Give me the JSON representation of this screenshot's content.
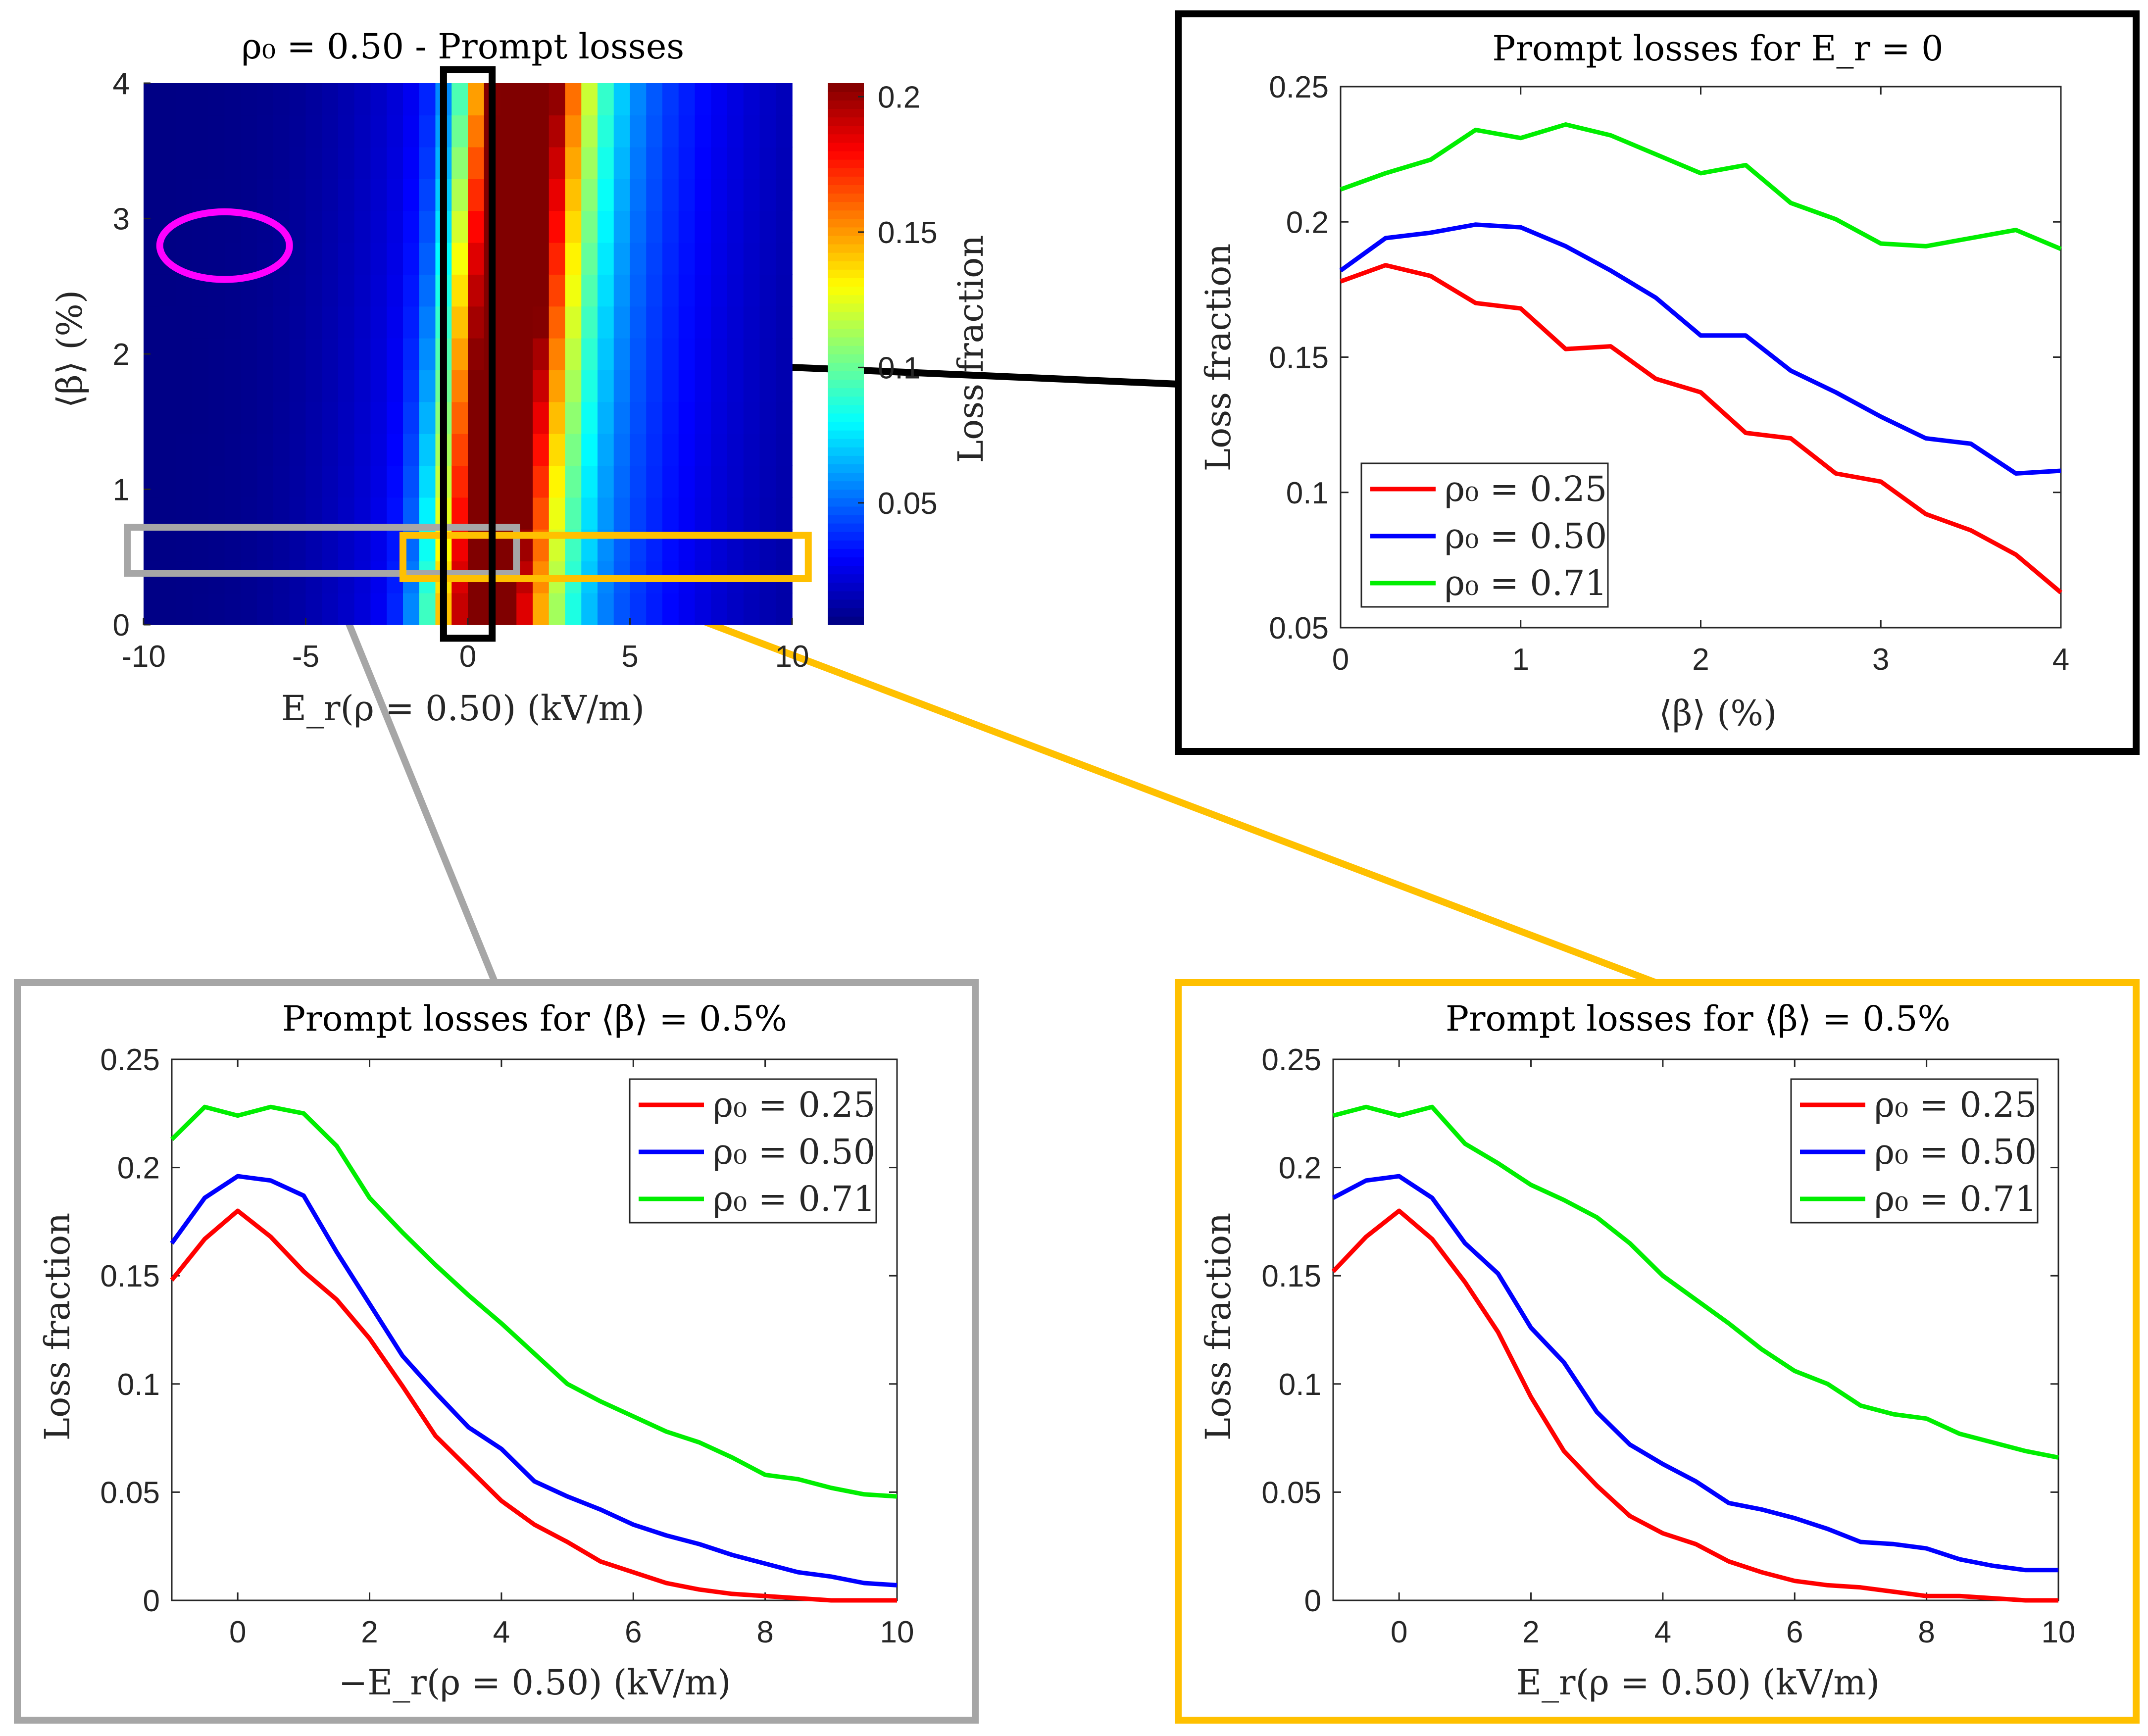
{
  "colors": {
    "rho025": "#ff0000",
    "rho050": "#0000ff",
    "rho071": "#00ee00",
    "box_main": "#000000",
    "box_gray": "#a6a6a6",
    "box_orange": "#ffc000",
    "ellipse": "#ff00ff"
  },
  "chart_data": [
    {
      "id": "heatmap",
      "type": "heatmap",
      "title": "ρ₀ = 0.50 - Prompt losses",
      "xlabel": "E_r(ρ = 0.50) (kV/m)",
      "ylabel": "⟨β⟩ (%)",
      "xlim": [
        -10,
        10
      ],
      "ylim": [
        0,
        4
      ],
      "xticks": [
        -10,
        -5,
        0,
        5,
        10
      ],
      "yticks": [
        0,
        1,
        2,
        3,
        4
      ],
      "colorbar": {
        "label": "Loss fraction",
        "range": [
          0.005,
          0.205
        ],
        "ticks": [
          0.05,
          0.1,
          0.15,
          0.2
        ],
        "tick_labels": [
          "0.05",
          "0.1",
          "0.15",
          "0.2"
        ],
        "colormap": "jet"
      },
      "annotations": {
        "ellipse": {
          "center": [
            -7.5,
            2.8
          ],
          "semi_axes": [
            2.0,
            0.25
          ]
        },
        "black_box": {
          "x": [
            -0.75,
            0.75
          ],
          "y": [
            -0.1,
            4.1
          ]
        },
        "gray_box": {
          "x": [
            -10.5,
            1.5
          ],
          "y": [
            0.38,
            0.72
          ]
        },
        "orange_box": {
          "x": [
            -2.0,
            10.5
          ],
          "y": [
            0.34,
            0.66
          ]
        }
      }
    },
    {
      "id": "beta-profile",
      "type": "line",
      "title": "Prompt losses for E_r = 0",
      "xlabel": "⟨β⟩ (%)",
      "ylabel": "Loss fraction",
      "xlim": [
        0,
        4
      ],
      "ylim": [
        0.05,
        0.25
      ],
      "xticks": [
        0,
        1,
        2,
        3,
        4
      ],
      "yticks": [
        0.05,
        0.1,
        0.15,
        0.2,
        0.25
      ],
      "ytick_labels": [
        "0.05",
        "0.1",
        "0.15",
        "0.2",
        "0.25"
      ],
      "legend_position": "bottom-left",
      "x": [
        0,
        0.25,
        0.5,
        0.75,
        1.0,
        1.25,
        1.5,
        1.75,
        2.0,
        2.25,
        2.5,
        2.75,
        3.0,
        3.25,
        3.5,
        3.75,
        4.0
      ],
      "series": [
        {
          "name": "ρ₀ = 0.25",
          "color": "#ff0000",
          "values": [
            0.178,
            0.184,
            0.18,
            0.17,
            0.168,
            0.153,
            0.154,
            0.142,
            0.137,
            0.122,
            0.12,
            0.107,
            0.104,
            0.092,
            0.086,
            0.077,
            0.063
          ]
        },
        {
          "name": "ρ₀ = 0.50",
          "color": "#0000ff",
          "values": [
            0.182,
            0.194,
            0.196,
            0.199,
            0.198,
            0.191,
            0.182,
            0.172,
            0.158,
            0.158,
            0.145,
            0.137,
            0.128,
            0.12,
            0.118,
            0.107,
            0.108
          ]
        },
        {
          "name": "ρ₀ = 0.71",
          "color": "#00ee00",
          "values": [
            0.212,
            0.218,
            0.223,
            0.234,
            0.231,
            0.236,
            0.232,
            0.225,
            0.218,
            0.221,
            0.207,
            0.201,
            0.192,
            0.191,
            0.194,
            0.197,
            0.19
          ]
        }
      ]
    },
    {
      "id": "er-negative",
      "type": "line",
      "title": "Prompt losses for ⟨β⟩ = 0.5%",
      "xlabel": "−E_r(ρ = 0.50) (kV/m)",
      "ylabel": "Loss fraction",
      "xlim": [
        -1,
        10
      ],
      "ylim": [
        0,
        0.25
      ],
      "xticks": [
        0,
        2,
        4,
        6,
        8,
        10
      ],
      "yticks": [
        0,
        0.05,
        0.1,
        0.15,
        0.2,
        0.25
      ],
      "ytick_labels": [
        "0",
        "0.05",
        "0.1",
        "0.15",
        "0.2",
        "0.25"
      ],
      "legend_position": "top-right",
      "x": [
        -1,
        -0.5,
        0,
        0.5,
        1,
        1.5,
        2,
        2.5,
        3,
        3.5,
        4,
        4.5,
        5,
        5.5,
        6,
        6.5,
        7,
        7.5,
        8,
        8.5,
        9,
        9.5,
        10
      ],
      "series": [
        {
          "name": "ρ₀ = 0.25",
          "color": "#ff0000",
          "values": [
            0.148,
            0.167,
            0.18,
            0.168,
            0.152,
            0.139,
            0.121,
            0.099,
            0.076,
            0.061,
            0.046,
            0.035,
            0.027,
            0.018,
            0.013,
            0.008,
            0.005,
            0.003,
            0.002,
            0.001,
            0.0,
            0.0,
            0.0
          ]
        },
        {
          "name": "ρ₀ = 0.50",
          "color": "#0000ff",
          "values": [
            0.165,
            0.186,
            0.196,
            0.194,
            0.187,
            0.161,
            0.137,
            0.113,
            0.096,
            0.08,
            0.07,
            0.055,
            0.048,
            0.042,
            0.035,
            0.03,
            0.026,
            0.021,
            0.017,
            0.013,
            0.011,
            0.008,
            0.007
          ]
        },
        {
          "name": "ρ₀ = 0.71",
          "color": "#00ee00",
          "values": [
            0.213,
            0.228,
            0.224,
            0.228,
            0.225,
            0.21,
            0.186,
            0.17,
            0.155,
            0.141,
            0.128,
            0.114,
            0.1,
            0.092,
            0.085,
            0.078,
            0.073,
            0.066,
            0.058,
            0.056,
            0.052,
            0.049,
            0.048
          ]
        }
      ]
    },
    {
      "id": "er-positive",
      "type": "line",
      "title": "Prompt losses for ⟨β⟩ = 0.5%",
      "xlabel": "E_r(ρ = 0.50) (kV/m)",
      "ylabel": "Loss fraction",
      "xlim": [
        -1,
        10
      ],
      "ylim": [
        0,
        0.25
      ],
      "xticks": [
        0,
        2,
        4,
        6,
        8,
        10
      ],
      "yticks": [
        0,
        0.05,
        0.1,
        0.15,
        0.2,
        0.25
      ],
      "ytick_labels": [
        "0",
        "0.05",
        "0.1",
        "0.15",
        "0.2",
        "0.25"
      ],
      "legend_position": "top-right",
      "x": [
        -1,
        -0.5,
        0,
        0.5,
        1,
        1.5,
        2,
        2.5,
        3,
        3.5,
        4,
        4.5,
        5,
        5.5,
        6,
        6.5,
        7,
        7.5,
        8,
        8.5,
        9,
        9.5,
        10
      ],
      "series": [
        {
          "name": "ρ₀ = 0.25",
          "color": "#ff0000",
          "values": [
            0.152,
            0.168,
            0.18,
            0.167,
            0.147,
            0.124,
            0.094,
            0.069,
            0.053,
            0.039,
            0.031,
            0.026,
            0.018,
            0.013,
            0.009,
            0.007,
            0.006,
            0.004,
            0.002,
            0.002,
            0.001,
            0.0,
            0.0
          ]
        },
        {
          "name": "ρ₀ = 0.50",
          "color": "#0000ff",
          "values": [
            0.186,
            0.194,
            0.196,
            0.186,
            0.165,
            0.151,
            0.126,
            0.11,
            0.087,
            0.072,
            0.063,
            0.055,
            0.045,
            0.042,
            0.038,
            0.033,
            0.027,
            0.026,
            0.024,
            0.019,
            0.016,
            0.014,
            0.014
          ]
        },
        {
          "name": "ρ₀ = 0.71",
          "color": "#00ee00",
          "values": [
            0.224,
            0.228,
            0.224,
            0.228,
            0.211,
            0.202,
            0.192,
            0.185,
            0.177,
            0.165,
            0.15,
            0.139,
            0.128,
            0.116,
            0.106,
            0.1,
            0.09,
            0.086,
            0.084,
            0.077,
            0.073,
            0.069,
            0.066
          ]
        }
      ]
    }
  ]
}
